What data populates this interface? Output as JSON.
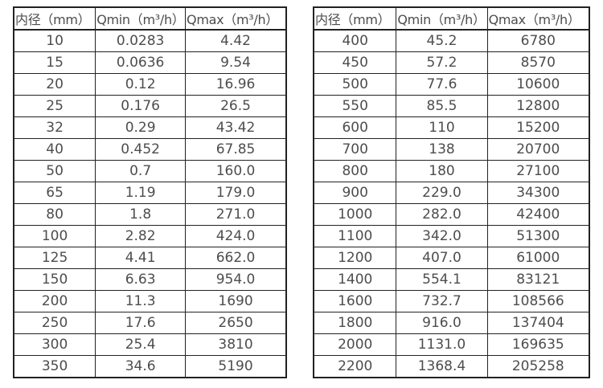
{
  "page": {
    "background_color": "#ffffff",
    "text_color": "#4d4d4d",
    "border_color": "#222222"
  },
  "chart_data": [
    {
      "type": "table",
      "title": "",
      "columns": [
        "内径（mm）",
        "Qmin（m³/h）",
        "Qmax（m³/h）"
      ],
      "rows": [
        [
          "10",
          "0.0283",
          "4.42"
        ],
        [
          "15",
          "0.0636",
          "9.54"
        ],
        [
          "20",
          "0.12",
          "16.96"
        ],
        [
          "25",
          "0.176",
          "26.5"
        ],
        [
          "32",
          "0.29",
          "43.42"
        ],
        [
          "40",
          "0.452",
          "67.85"
        ],
        [
          "50",
          "0.7",
          "160.0"
        ],
        [
          "65",
          "1.19",
          "179.0"
        ],
        [
          "80",
          "1.8",
          "271.0"
        ],
        [
          "100",
          "2.82",
          "424.0"
        ],
        [
          "125",
          "4.41",
          "662.0"
        ],
        [
          "150",
          "6.63",
          "954.0"
        ],
        [
          "200",
          "11.3",
          "1690"
        ],
        [
          "250",
          "17.6",
          "2650"
        ],
        [
          "300",
          "25.4",
          "3810"
        ],
        [
          "350",
          "34.6",
          "5190"
        ]
      ]
    },
    {
      "type": "table",
      "title": "",
      "columns": [
        "内径（mm）",
        "Qmin（m³/h）",
        "Qmax（m³/h）"
      ],
      "rows": [
        [
          "400",
          "45.2",
          "6780"
        ],
        [
          "450",
          "57.2",
          "8570"
        ],
        [
          "500",
          "77.6",
          "10600"
        ],
        [
          "550",
          "85.5",
          "12800"
        ],
        [
          "600",
          "110",
          "15200"
        ],
        [
          "700",
          "138",
          "20700"
        ],
        [
          "800",
          "180",
          "27100"
        ],
        [
          "900",
          "229.0",
          "34300"
        ],
        [
          "1000",
          "282.0",
          "42400"
        ],
        [
          "1100",
          "342.0",
          "51300"
        ],
        [
          "1200",
          "407.0",
          "61000"
        ],
        [
          "1400",
          "554.1",
          "83121"
        ],
        [
          "1600",
          "732.7",
          "108566"
        ],
        [
          "1800",
          "916.0",
          "137404"
        ],
        [
          "2000",
          "1131.0",
          "169635"
        ],
        [
          "2200",
          "1368.4",
          "205258"
        ]
      ]
    }
  ]
}
